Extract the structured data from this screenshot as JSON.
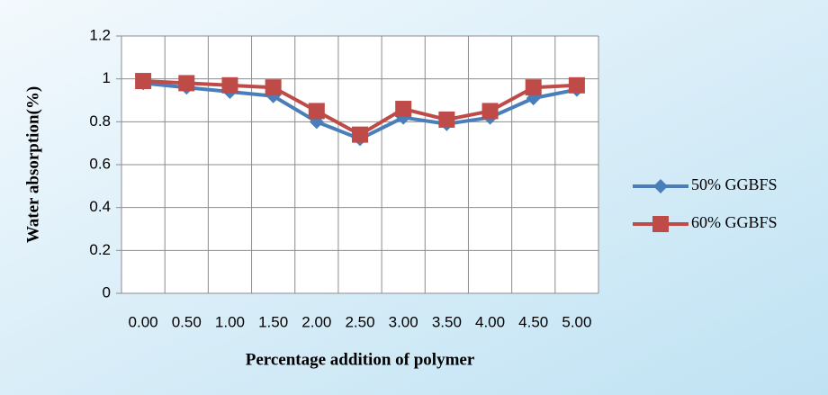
{
  "chart_data": {
    "type": "line",
    "x_label": "Percentage addition of polymer",
    "y_label": "Water absorption(%)",
    "categories": [
      "0.00",
      "0.50",
      "1.00",
      "1.50",
      "2.00",
      "2.50",
      "3.00",
      "3.50",
      "4.00",
      "4.50",
      "5.00"
    ],
    "series": [
      {
        "name": "50% GGBFS",
        "color": "#4a7ebb",
        "marker": "diamond",
        "values": [
          0.98,
          0.96,
          0.94,
          0.92,
          0.8,
          0.72,
          0.82,
          0.79,
          0.82,
          0.91,
          0.95
        ]
      },
      {
        "name": "60% GGBFS",
        "color": "#be4b48",
        "marker": "square",
        "values": [
          0.99,
          0.98,
          0.97,
          0.96,
          0.85,
          0.74,
          0.86,
          0.81,
          0.85,
          0.96,
          0.97
        ]
      }
    ],
    "ylim": [
      0,
      1.2
    ],
    "yticks": [
      0,
      0.2,
      0.4,
      0.6,
      0.8,
      1,
      1.2
    ],
    "grid": true,
    "legend": "right"
  }
}
